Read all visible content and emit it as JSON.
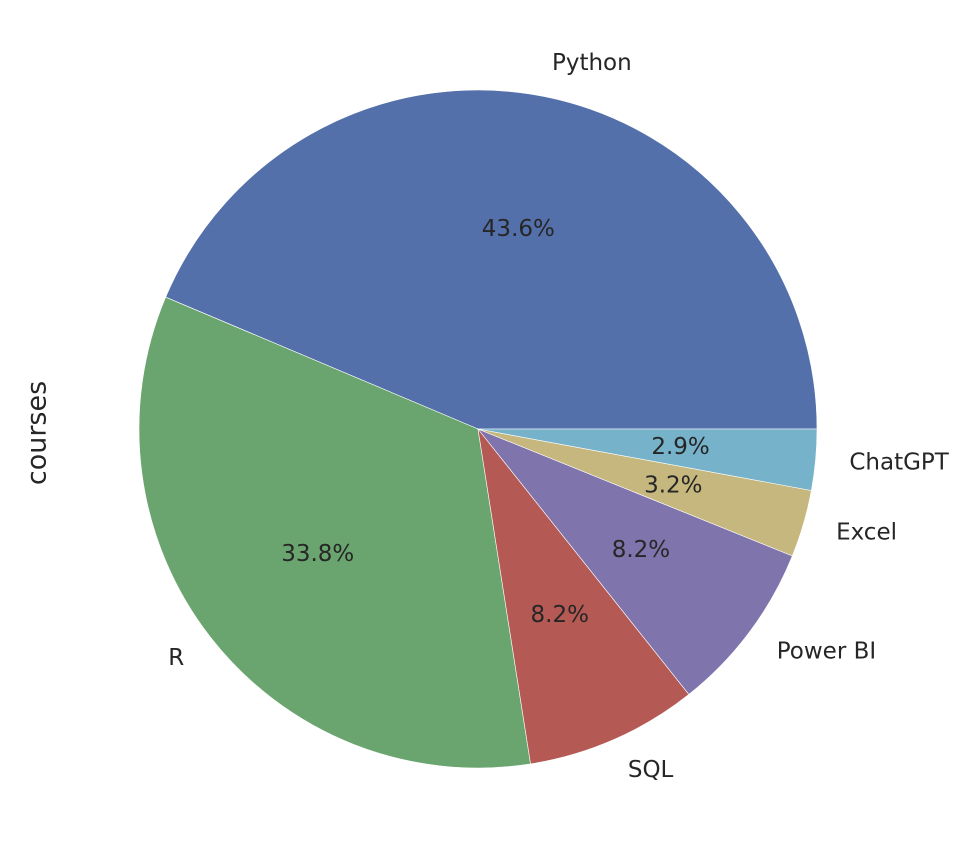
{
  "chart_data": {
    "type": "pie",
    "ylabel": "courses",
    "start_angle_deg": 0,
    "direction": "counterclockwise",
    "slices": [
      {
        "label": "Python",
        "value": 43.6,
        "pct_text": "43.6%",
        "color": "#5470aa"
      },
      {
        "label": "R",
        "value": 33.8,
        "pct_text": "33.8%",
        "color": "#6aa56f"
      },
      {
        "label": "SQL",
        "value": 8.2,
        "pct_text": "8.2%",
        "color": "#b55955"
      },
      {
        "label": "Power BI",
        "value": 8.2,
        "pct_text": "8.2%",
        "color": "#8074ad"
      },
      {
        "label": "Excel",
        "value": 3.2,
        "pct_text": "3.2%",
        "color": "#c6b77e"
      },
      {
        "label": "ChatGPT",
        "value": 2.9,
        "pct_text": "2.9%",
        "color": "#76b2ca"
      }
    ]
  }
}
